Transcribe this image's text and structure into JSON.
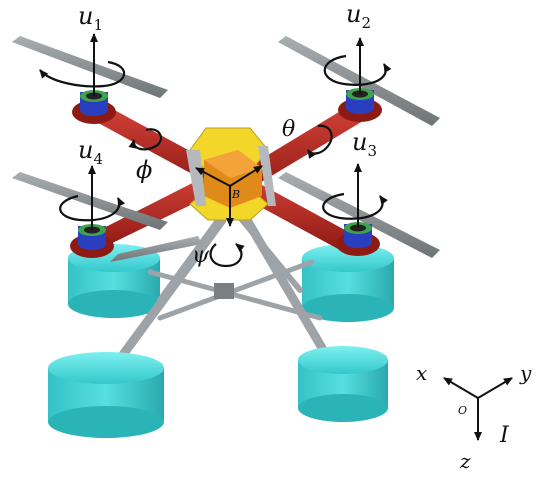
{
  "labels": {
    "u1_main": "u",
    "u1_sub": "1",
    "u2_main": "u",
    "u2_sub": "2",
    "u3_main": "u",
    "u3_sub": "3",
    "u4_main": "u",
    "u4_sub": "4",
    "phi": "ϕ",
    "theta": "θ",
    "psi": "ψ",
    "body_frame": "B",
    "axis_x": "x",
    "axis_y": "y",
    "axis_z": "z",
    "origin": "O",
    "inertial_frame": "I"
  },
  "colors": {
    "arm": "#b3261e",
    "propeller": "#8a8f92",
    "floats": "#46d6d8",
    "center_plate": "#f2d72a",
    "body_box": "#e08a1a",
    "motor_ring_green": "#3fa34d",
    "motor_ring_blue": "#2a3fbf",
    "landing_struts": "#a8acb0"
  },
  "icons": {
    "arrow": "arrow-icon",
    "rotation": "curved-arrow-icon"
  }
}
